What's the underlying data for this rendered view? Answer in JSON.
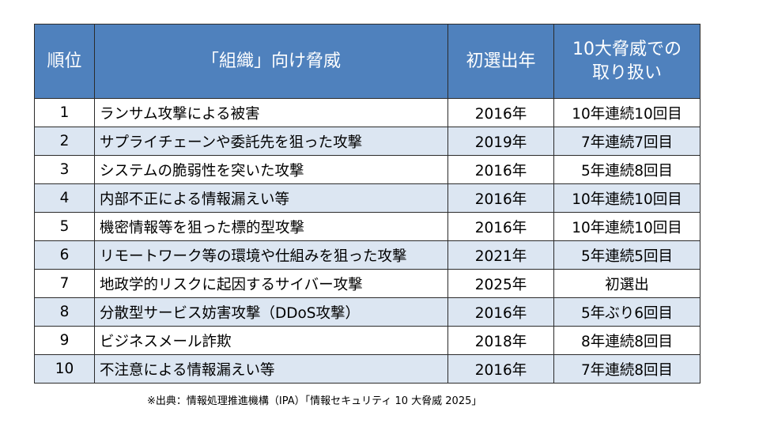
{
  "table": {
    "headers": {
      "rank": "順位",
      "threat": "「組織」向け脅威",
      "first_year": "初選出年",
      "treatment_line1": "10大脅威での",
      "treatment_line2": "取り扱い"
    },
    "rows": [
      {
        "rank": "1",
        "threat": "ランサム攻撃による被害",
        "first_year": "2016年",
        "treatment": "10年連続10回目"
      },
      {
        "rank": "2",
        "threat": "サプライチェーンや委託先を狙った攻撃",
        "first_year": "2019年",
        "treatment": "7年連続7回目"
      },
      {
        "rank": "3",
        "threat": "システムの脆弱性を突いた攻撃",
        "first_year": "2016年",
        "treatment": "5年連続8回目"
      },
      {
        "rank": "4",
        "threat": "内部不正による情報漏えい等",
        "first_year": "2016年",
        "treatment": "10年連続10回目"
      },
      {
        "rank": "5",
        "threat": "機密情報等を狙った標的型攻撃",
        "first_year": "2016年",
        "treatment": "10年連続10回目"
      },
      {
        "rank": "6",
        "threat": "リモートワーク等の環境や仕組みを狙った攻撃",
        "first_year": "2021年",
        "treatment": "5年連続5回目"
      },
      {
        "rank": "7",
        "threat": "地政学的リスクに起因するサイバー攻撃",
        "first_year": "2025年",
        "treatment": "初選出"
      },
      {
        "rank": "8",
        "threat": "分散型サービス妨害攻撃（DDoS攻撃）",
        "first_year": "2016年",
        "treatment": "5年ぶり6回目"
      },
      {
        "rank": "9",
        "threat": "ビジネスメール詐欺",
        "first_year": "2018年",
        "treatment": "8年連続8回目"
      },
      {
        "rank": "10",
        "threat": "不注意による情報漏えい等",
        "first_year": "2016年",
        "treatment": "7年連続8回目"
      }
    ]
  },
  "source_note": "※出典：情報処理推進機構（IPA）「情報セキュリティ 10 大脅威 2025」",
  "colors": {
    "header_bg": "#4f81bd",
    "header_text": "#ffffff",
    "row_alt_bg": "#dce6f2",
    "border": "#2b2b2b"
  }
}
